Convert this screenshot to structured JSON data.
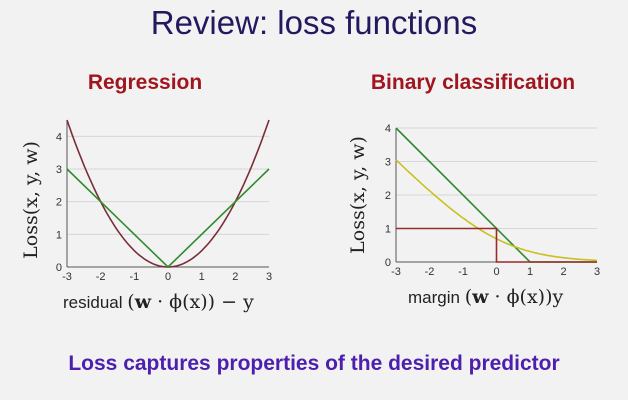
{
  "slide": {
    "title": "Review: loss functions",
    "footer": "Loss captures properties of the desired predictor"
  },
  "colors": {
    "title": "#24185f",
    "panel_title": "#a0161f",
    "footer": "#4d1fae",
    "squared_loss": "#7a2e3a",
    "absolute_loss": "#2e8b2e",
    "hinge_loss": "#2e8b2e",
    "logistic_loss": "#c8c020",
    "zero_one_loss": "#9b2a2a"
  },
  "chart_data": [
    {
      "type": "line",
      "title": "Regression",
      "xlabel_text": "residual",
      "xlabel_math": [
        "(",
        "w",
        " · ϕ(x)) − y"
      ],
      "ylabel_math": "Loss(x, y, w)",
      "xlim": [
        -3,
        3
      ],
      "ylim": [
        0,
        4.5
      ],
      "x_ticks": [
        -3,
        -2,
        -1,
        0,
        1,
        2,
        3
      ],
      "y_ticks": [
        0,
        1,
        2,
        3,
        4
      ],
      "series": [
        {
          "function": "squared",
          "x": [
            -3,
            -2.5,
            -2,
            -1.5,
            -1,
            -0.5,
            0,
            0.5,
            1,
            1.5,
            2,
            2.5,
            3
          ],
          "y": [
            4.5,
            3.125,
            2,
            1.125,
            0.5,
            0.125,
            0,
            0.125,
            0.5,
            1.125,
            2,
            3.125,
            4.5
          ],
          "color_key": "squared_loss"
        },
        {
          "function": "absolute",
          "x": [
            -3,
            0,
            3
          ],
          "y": [
            3,
            0,
            3
          ],
          "color_key": "absolute_loss"
        }
      ]
    },
    {
      "type": "line",
      "title": "Binary classification",
      "xlabel_text": "margin",
      "xlabel_math": [
        "(",
        "w",
        " · ϕ(x))y"
      ],
      "ylabel_math": "Loss(x, y, w)",
      "xlim": [
        -3,
        3
      ],
      "ylim": [
        0,
        4
      ],
      "x_ticks": [
        -3,
        -2,
        -1,
        0,
        1,
        2,
        3
      ],
      "y_ticks": [
        0,
        1,
        2,
        3,
        4
      ],
      "series": [
        {
          "function": "hinge",
          "x": [
            -3,
            1,
            3
          ],
          "y": [
            4,
            0,
            0
          ],
          "color_key": "hinge_loss"
        },
        {
          "function": "logistic",
          "x": [
            -3,
            -2.5,
            -2,
            -1.5,
            -1,
            -0.5,
            0,
            0.5,
            1,
            1.5,
            2,
            2.5,
            3
          ],
          "y": [
            3.05,
            2.59,
            2.13,
            1.7,
            1.31,
            0.97,
            0.69,
            0.47,
            0.31,
            0.2,
            0.13,
            0.08,
            0.05
          ],
          "color_key": "logistic_loss"
        },
        {
          "function": "zero_one",
          "x": [
            -3,
            0,
            0,
            3
          ],
          "y": [
            1,
            1,
            0,
            0
          ],
          "color_key": "zero_one_loss"
        }
      ]
    }
  ]
}
